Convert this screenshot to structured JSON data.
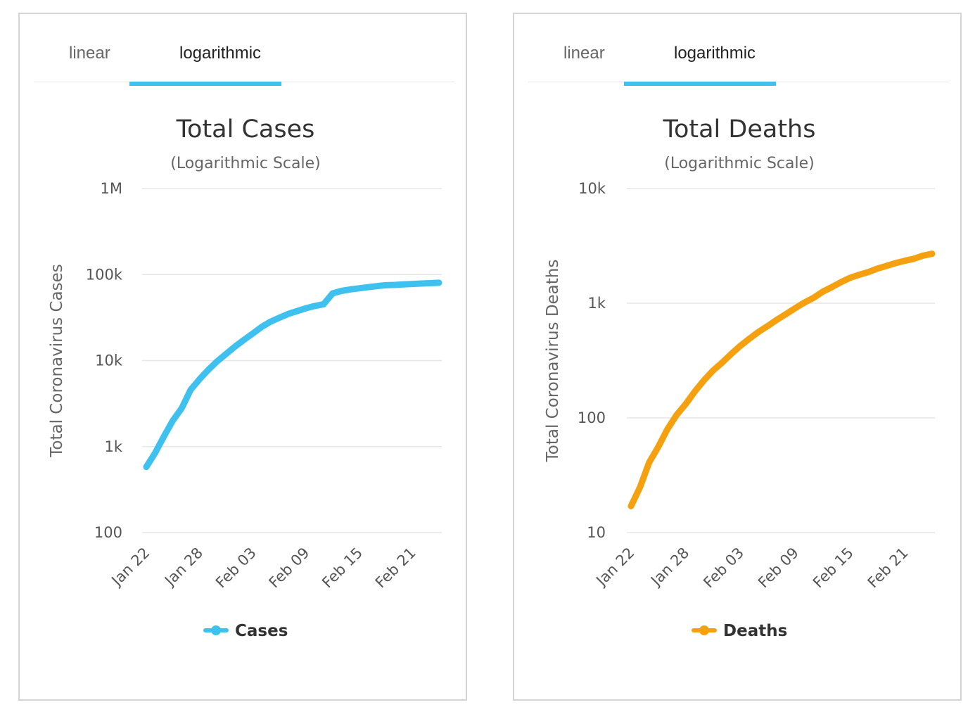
{
  "tabs": {
    "linear_label": "linear",
    "log_label": "logarithmic",
    "active": "logarithmic",
    "accent": "#3fc1f0"
  },
  "chart_data": [
    {
      "type": "line",
      "title": "Total Cases",
      "subtitle": "(Logarithmic Scale)",
      "xlabel": "",
      "ylabel": "Total Coronavirus Cases",
      "yscale": "log",
      "ylim": [
        100,
        1000000
      ],
      "yticks": [
        100,
        1000,
        10000,
        100000,
        1000000
      ],
      "ytick_labels": [
        "100",
        "1k",
        "10k",
        "100k",
        "1M"
      ],
      "xtick_labels": [
        "Jan 22",
        "Jan 28",
        "Feb 03",
        "Feb 09",
        "Feb 15",
        "Feb 21"
      ],
      "x": [
        "Jan 22",
        "Jan 23",
        "Jan 24",
        "Jan 25",
        "Jan 26",
        "Jan 27",
        "Jan 28",
        "Jan 29",
        "Jan 30",
        "Jan 31",
        "Feb 01",
        "Feb 02",
        "Feb 03",
        "Feb 04",
        "Feb 05",
        "Feb 06",
        "Feb 07",
        "Feb 08",
        "Feb 09",
        "Feb 10",
        "Feb 11",
        "Feb 12",
        "Feb 13",
        "Feb 14",
        "Feb 15",
        "Feb 16",
        "Feb 17",
        "Feb 18",
        "Feb 19",
        "Feb 20",
        "Feb 21",
        "Feb 22",
        "Feb 23",
        "Feb 24"
      ],
      "grid": true,
      "legend_position": "bottom",
      "series": [
        {
          "name": "Cases",
          "color": "#3fc1f0",
          "values": [
            580,
            845,
            1320,
            2015,
            2800,
            4580,
            6060,
            7810,
            9820,
            11950,
            14550,
            17390,
            20630,
            24550,
            28280,
            31480,
            34880,
            37560,
            40560,
            43110,
            45170,
            60330,
            64580,
            67100,
            69200,
            71340,
            73330,
            75190,
            75720,
            76720,
            77810,
            78630,
            79400,
            80250
          ]
        }
      ]
    },
    {
      "type": "line",
      "title": "Total Deaths",
      "subtitle": "(Logarithmic Scale)",
      "xlabel": "",
      "ylabel": "Total Coronavirus Deaths",
      "yscale": "log",
      "ylim": [
        10,
        10000
      ],
      "yticks": [
        10,
        100,
        1000,
        10000
      ],
      "ytick_labels": [
        "10",
        "100",
        "1k",
        "10k"
      ],
      "xtick_labels": [
        "Jan 22",
        "Jan 28",
        "Feb 03",
        "Feb 09",
        "Feb 15",
        "Feb 21"
      ],
      "x": [
        "Jan 22",
        "Jan 23",
        "Jan 24",
        "Jan 25",
        "Jan 26",
        "Jan 27",
        "Jan 28",
        "Jan 29",
        "Jan 30",
        "Jan 31",
        "Feb 01",
        "Feb 02",
        "Feb 03",
        "Feb 04",
        "Feb 05",
        "Feb 06",
        "Feb 07",
        "Feb 08",
        "Feb 09",
        "Feb 10",
        "Feb 11",
        "Feb 12",
        "Feb 13",
        "Feb 14",
        "Feb 15",
        "Feb 16",
        "Feb 17",
        "Feb 18",
        "Feb 19",
        "Feb 20",
        "Feb 21",
        "Feb 22",
        "Feb 23",
        "Feb 24"
      ],
      "grid": true,
      "legend_position": "bottom",
      "series": [
        {
          "name": "Deaths",
          "color": "#f5a00f",
          "values": [
            17,
            25,
            41,
            56,
            80,
            106,
            132,
            170,
            213,
            259,
            304,
            362,
            426,
            492,
            564,
            634,
            719,
            806,
            906,
            1013,
            1113,
            1259,
            1380,
            1523,
            1665,
            1770,
            1868,
            2004,
            2118,
            2236,
            2345,
            2442,
            2597,
            2700
          ]
        }
      ]
    }
  ]
}
